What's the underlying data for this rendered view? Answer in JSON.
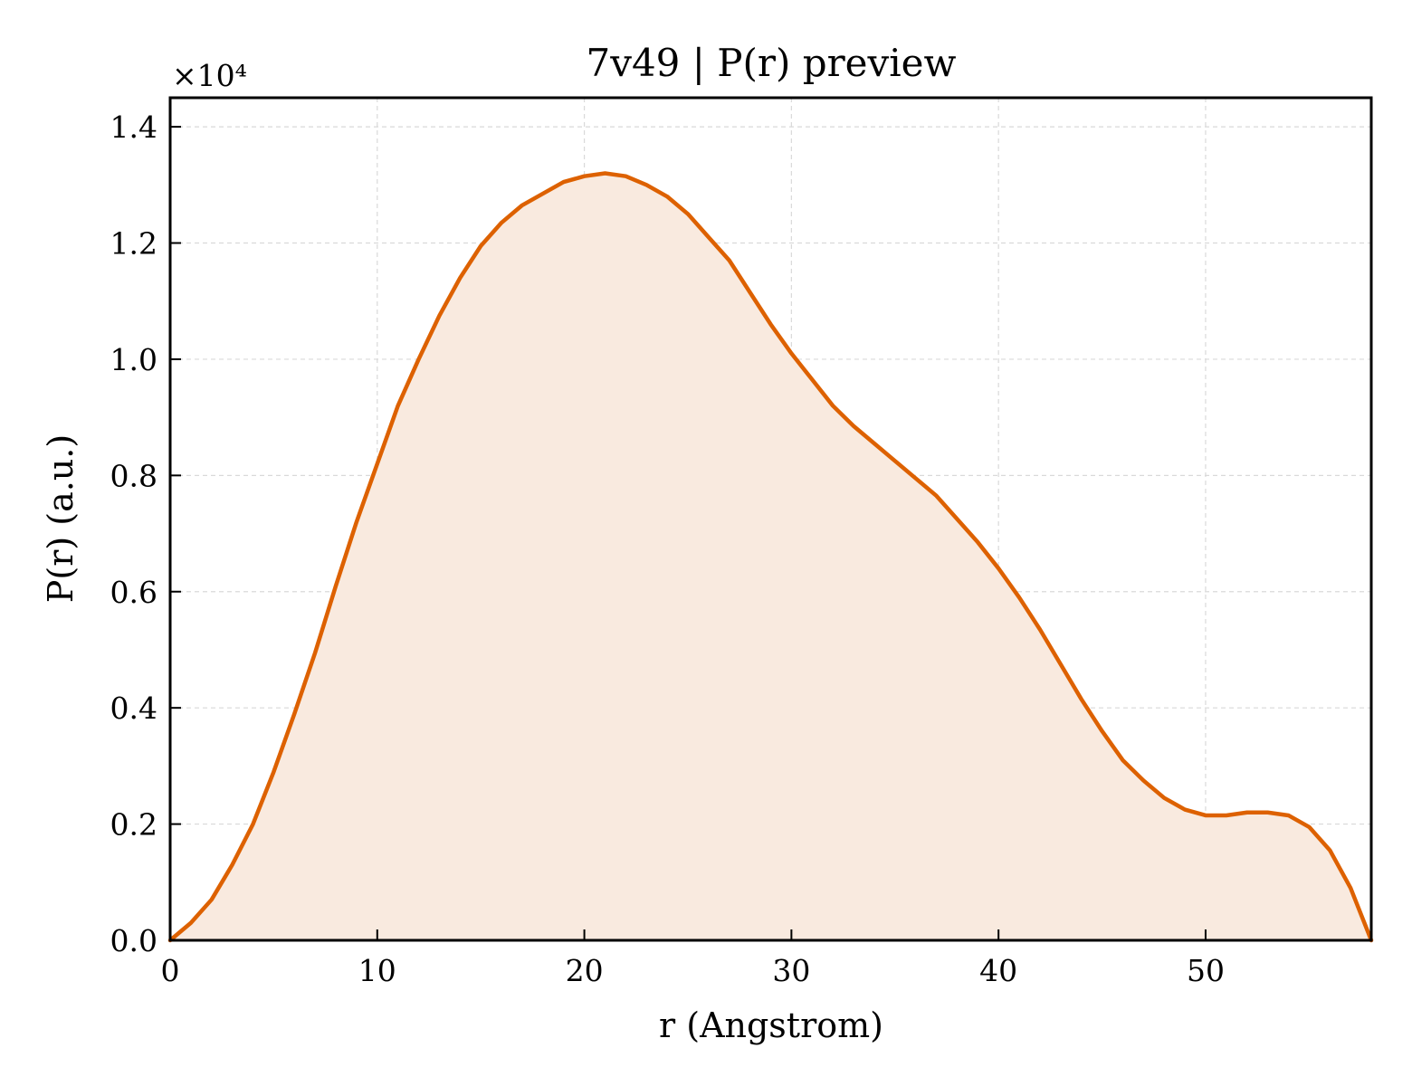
{
  "chart_data": {
    "type": "area",
    "title": "7v49 | P(r) preview",
    "xlabel": "r (Angstrom)",
    "ylabel": "P(r) (a.u.)",
    "y_multiplier": "×10⁴",
    "xlim": [
      0,
      58
    ],
    "ylim": [
      0,
      14500
    ],
    "xticks": [
      0,
      10,
      20,
      30,
      40,
      50
    ],
    "yticks": [
      0,
      2000,
      4000,
      6000,
      8000,
      10000,
      12000,
      14000
    ],
    "xtick_labels": [
      "0",
      "10",
      "20",
      "30",
      "40",
      "50"
    ],
    "ytick_labels": [
      "0.0",
      "0.2",
      "0.4",
      "0.6",
      "0.8",
      "1.0",
      "1.2",
      "1.4"
    ],
    "grid": true,
    "line_color": "#dd6100",
    "fill_color": "#f9eadf",
    "series": [
      {
        "x": [
          0,
          1,
          2,
          2.5,
          3,
          4,
          5,
          6,
          7,
          8,
          9,
          10,
          11,
          12,
          13,
          14,
          15,
          16,
          17,
          18,
          19,
          20,
          21,
          22,
          23,
          24,
          25,
          26,
          27,
          28,
          29,
          30,
          31,
          32,
          33,
          34,
          35,
          36,
          37,
          38,
          39,
          40,
          41,
          42,
          43,
          44,
          45,
          46,
          47,
          48,
          49,
          50,
          51,
          52,
          53,
          54,
          55,
          56,
          57,
          58
        ],
        "y": [
          0,
          300,
          700,
          1000,
          1300,
          2000,
          2900,
          3900,
          4950,
          6100,
          7200,
          8200,
          9200,
          10000,
          10750,
          11400,
          11950,
          12350,
          12650,
          12850,
          13050,
          13150,
          13200,
          13150,
          13000,
          12800,
          12500,
          12100,
          11700,
          11150,
          10600,
          10100,
          9650,
          9200,
          8850,
          8550,
          8250,
          7950,
          7650,
          7250,
          6850,
          6400,
          5900,
          5350,
          4750,
          4150,
          3600,
          3100,
          2750,
          2450,
          2250,
          2150,
          2150,
          2200,
          2200,
          2150,
          1950,
          1550,
          900,
          0
        ]
      }
    ]
  }
}
